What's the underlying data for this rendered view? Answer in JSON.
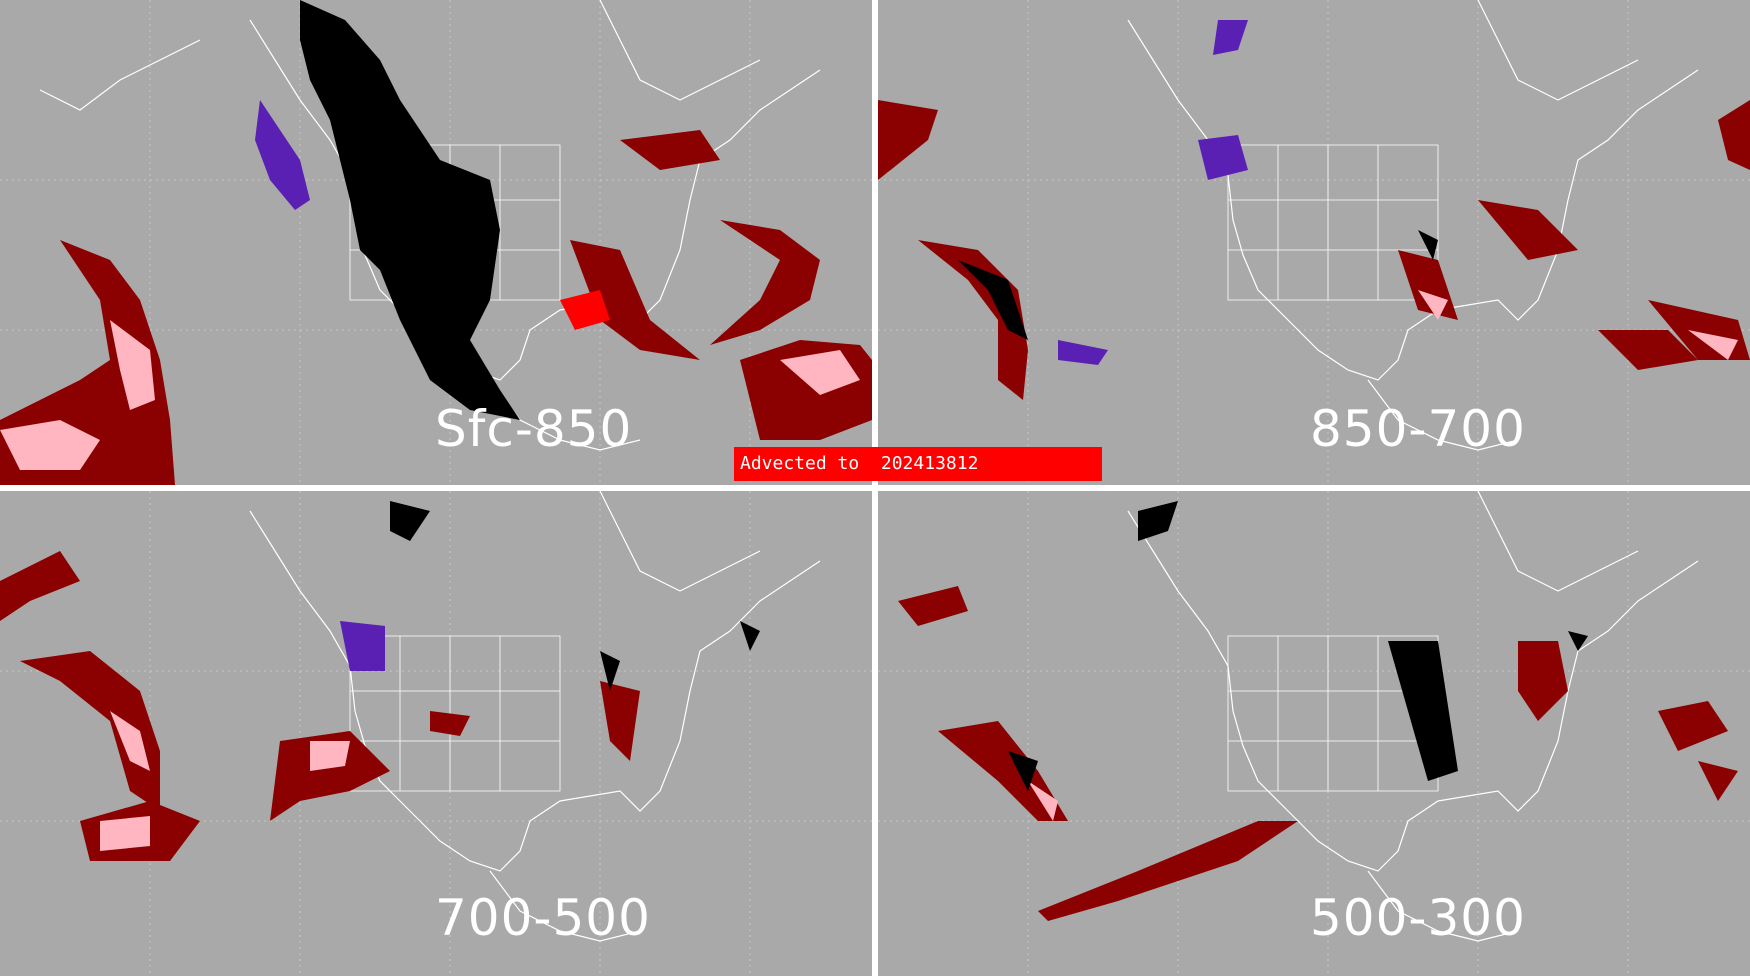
{
  "banner": {
    "text": "Advected to  202413812"
  },
  "panels": [
    {
      "label": "Sfc-850"
    },
    {
      "label": "850-700"
    },
    {
      "label": "700-500"
    },
    {
      "label": "500-300"
    }
  ],
  "colors": {
    "background": "#a9a9a9",
    "map_lines": "#ffffff",
    "dark_red": "#8b0000",
    "pink": "#ffb6c1",
    "bright_red": "#ff0000",
    "black": "#000000",
    "purple": "#5a1fb3",
    "banner": "#ff0000"
  }
}
